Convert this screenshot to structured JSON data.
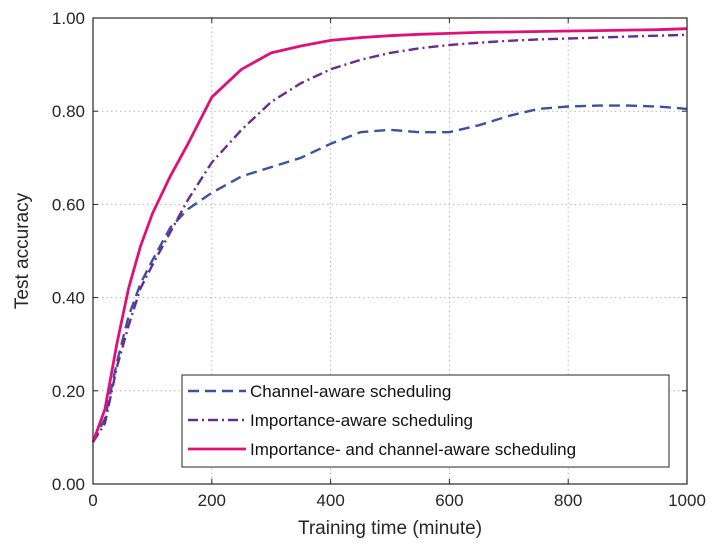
{
  "chart_data": {
    "type": "line",
    "title": "",
    "xlabel": "Training time (minute)",
    "ylabel": "Test accuracy",
    "xlim": [
      0,
      1000
    ],
    "ylim": [
      0,
      1
    ],
    "xticks": [
      0,
      200,
      400,
      600,
      800,
      1000
    ],
    "xtick_labels": [
      "0",
      "200",
      "400",
      "600",
      "800",
      "1000"
    ],
    "yticks": [
      0,
      0.2,
      0.4,
      0.6,
      0.8,
      1.0
    ],
    "ytick_labels": [
      "0.00",
      "0.20",
      "0.40",
      "0.60",
      "0.80",
      "1.00"
    ],
    "grid": true,
    "legend_position": "bottom-right",
    "series": [
      {
        "name": "Channel-aware scheduling",
        "color": "#3a52a0",
        "style": "dashed",
        "x": [
          0,
          20,
          40,
          60,
          80,
          100,
          130,
          160,
          200,
          250,
          300,
          350,
          400,
          450,
          500,
          550,
          600,
          650,
          700,
          750,
          800,
          850,
          900,
          950,
          1000
        ],
        "y": [
          0.09,
          0.14,
          0.26,
          0.36,
          0.43,
          0.48,
          0.55,
          0.59,
          0.625,
          0.66,
          0.68,
          0.7,
          0.73,
          0.755,
          0.76,
          0.755,
          0.755,
          0.77,
          0.79,
          0.805,
          0.81,
          0.812,
          0.812,
          0.81,
          0.805
        ]
      },
      {
        "name": "Importance-aware scheduling",
        "color": "#6a2b90",
        "style": "dashdot",
        "x": [
          0,
          20,
          40,
          60,
          80,
          100,
          130,
          160,
          200,
          250,
          300,
          350,
          400,
          450,
          500,
          550,
          600,
          650,
          700,
          750,
          800,
          850,
          900,
          950,
          1000
        ],
        "y": [
          0.09,
          0.13,
          0.25,
          0.34,
          0.42,
          0.47,
          0.54,
          0.61,
          0.69,
          0.76,
          0.82,
          0.86,
          0.89,
          0.91,
          0.925,
          0.935,
          0.942,
          0.947,
          0.951,
          0.954,
          0.956,
          0.958,
          0.96,
          0.962,
          0.964
        ]
      },
      {
        "name": "Importance- and channel-aware scheduling",
        "color": "#e0107a",
        "style": "solid",
        "x": [
          0,
          20,
          40,
          60,
          80,
          100,
          130,
          160,
          200,
          250,
          300,
          350,
          400,
          450,
          500,
          550,
          600,
          650,
          700,
          750,
          800,
          850,
          900,
          950,
          1000
        ],
        "y": [
          0.09,
          0.16,
          0.3,
          0.42,
          0.51,
          0.58,
          0.66,
          0.73,
          0.83,
          0.89,
          0.925,
          0.94,
          0.952,
          0.958,
          0.962,
          0.965,
          0.967,
          0.969,
          0.97,
          0.971,
          0.972,
          0.973,
          0.974,
          0.975,
          0.977
        ]
      }
    ]
  }
}
